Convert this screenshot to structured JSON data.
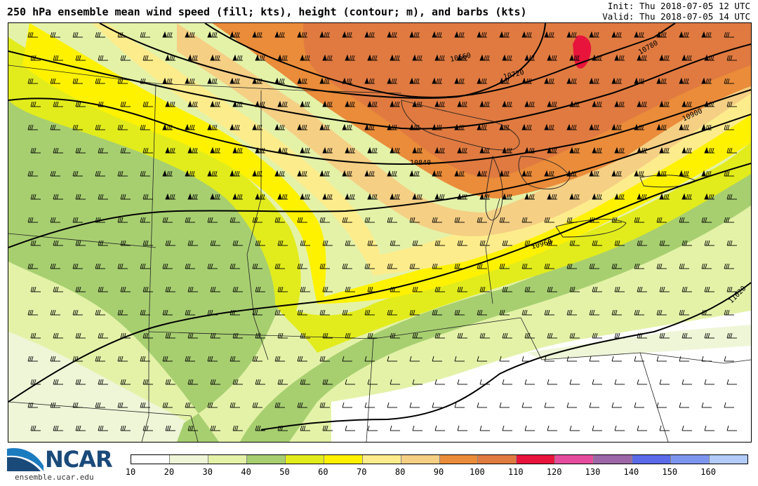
{
  "title": "250 hPa ensemble mean wind speed (fill; kts), height (contour; m), and barbs (kts)",
  "init": "Init: Thu 2018-07-05 12 UTC",
  "valid": "Valid: Thu 2018-07-05 14 UTC",
  "logo": {
    "name": "NCAR",
    "url": "ensemble.ucar.edu"
  },
  "contour_labels": [
    "10660",
    "10720",
    "10780",
    "10840",
    "10900",
    "10960",
    "11020"
  ],
  "colorbar": {
    "ticks": [
      "10",
      "20",
      "30",
      "40",
      "50",
      "60",
      "70",
      "80",
      "90",
      "100",
      "110",
      "120",
      "130",
      "140",
      "150",
      "160"
    ],
    "colors": [
      "#ffffff",
      "#eef6d7",
      "#e4f2a8",
      "#a7cf70",
      "#e2ec1c",
      "#fef200",
      "#fdec8c",
      "#f5cf84",
      "#ea8c3a",
      "#e07a40",
      "#e8143c",
      "#e54c9e",
      "#9c66a7",
      "#5a6ae8",
      "#7c96f0",
      "#b2cbf8"
    ]
  },
  "colors": {
    "frame": "#000000",
    "contour": "#000000",
    "ncar_blue": "#1a4a7a"
  }
}
